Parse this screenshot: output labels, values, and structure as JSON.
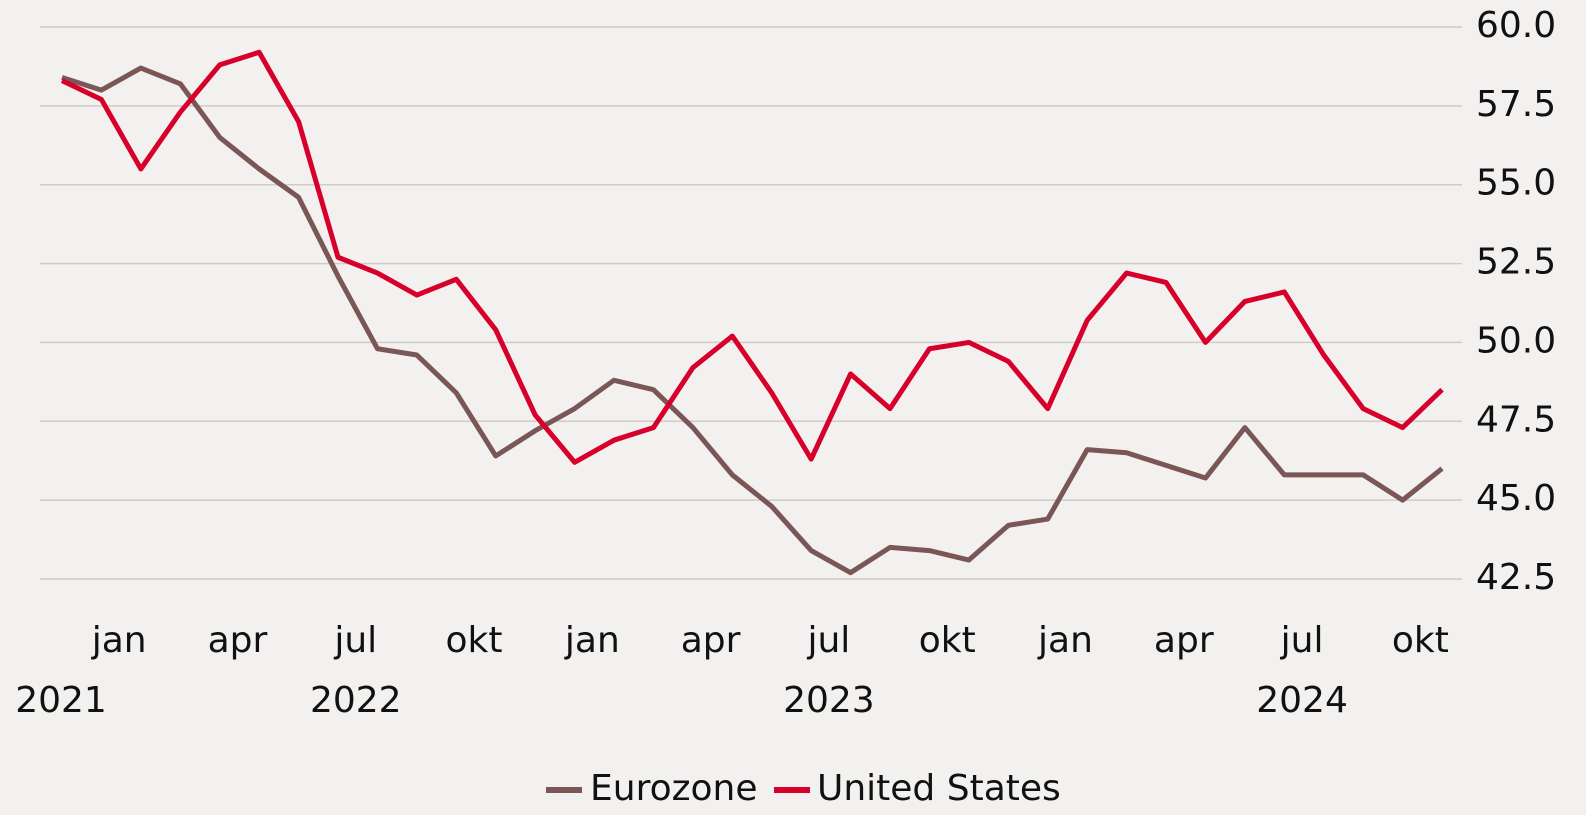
{
  "chart_data": {
    "type": "line",
    "categories": [
      null,
      null,
      "jan",
      null,
      null,
      "apr",
      null,
      null,
      "jul",
      null,
      null,
      "okt",
      null,
      null,
      "jan",
      null,
      null,
      "apr",
      null,
      null,
      "jul",
      null,
      null,
      "okt",
      null,
      null,
      "jan",
      null,
      null,
      "apr",
      null,
      null,
      "jul",
      null,
      null,
      "okt"
    ],
    "years": [
      "2021",
      null,
      null,
      null,
      null,
      null,
      null,
      null,
      "2022",
      null,
      null,
      null,
      null,
      null,
      null,
      null,
      null,
      null,
      null,
      null,
      "2023",
      null,
      null,
      null,
      null,
      null,
      null,
      null,
      null,
      null,
      null,
      null,
      "2024",
      null,
      null,
      null
    ],
    "series": [
      {
        "name": "Eurozone",
        "color": "#7b5656",
        "values": [
          58.4,
          58.0,
          58.7,
          58.2,
          56.5,
          55.5,
          54.6,
          52.1,
          49.8,
          49.6,
          48.4,
          46.4,
          47.2,
          47.9,
          48.8,
          48.5,
          47.3,
          45.8,
          44.8,
          43.4,
          42.7,
          43.5,
          43.4,
          43.1,
          44.2,
          44.4,
          46.6,
          46.5,
          46.1,
          45.7,
          47.3,
          45.8,
          45.8,
          45.8,
          45.0,
          46.0
        ]
      },
      {
        "name": "United States",
        "color": "#d7002a",
        "values": [
          58.3,
          57.7,
          55.5,
          57.3,
          58.8,
          59.2,
          57.0,
          52.7,
          52.2,
          51.5,
          52.0,
          50.4,
          47.7,
          46.2,
          46.9,
          47.3,
          49.2,
          50.2,
          48.4,
          46.3,
          49.0,
          47.9,
          49.8,
          50.0,
          49.4,
          47.9,
          50.7,
          52.2,
          51.9,
          50.0,
          51.3,
          51.6,
          49.6,
          47.9,
          47.3,
          48.5
        ]
      }
    ],
    "ylim": [
      41.5,
      60.4
    ],
    "yticks": [
      {
        "value": 60,
        "label": "60.0"
      },
      57.5,
      {
        "value": 55,
        "label": "55.0"
      },
      52.5,
      {
        "value": 50,
        "label": "50.0"
      },
      47.5,
      {
        "value": 45,
        "label": "45.0"
      },
      42.5
    ],
    "grid": true
  }
}
